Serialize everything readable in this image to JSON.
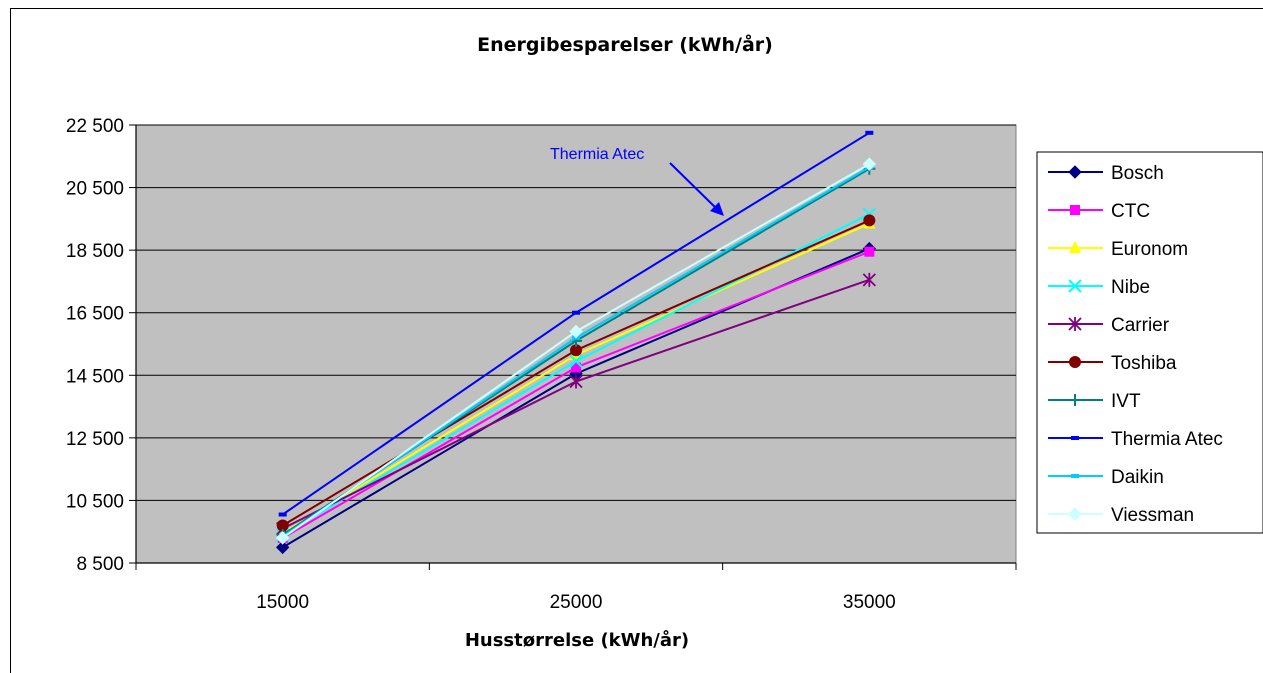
{
  "chart_data": {
    "type": "line",
    "title": "Energibesparelser (kWh/år)",
    "xlabel": "Husstørrelse (kWh/år)",
    "ylabel": "",
    "categories": [
      "15000",
      "25000",
      "35000"
    ],
    "ylim": [
      8500,
      22500
    ],
    "yticks": [
      8500,
      10500,
      12500,
      14500,
      16500,
      18500,
      20500,
      22500
    ],
    "ytick_labels": [
      "8 500",
      "10 500",
      "12 500",
      "14 500",
      "16 500",
      "18 500",
      "20 500",
      "22 500"
    ],
    "grid": "horizontal",
    "legend_position": "right",
    "plot_background": "#c0c0c0",
    "series": [
      {
        "name": "Bosch",
        "values": [
          9000,
          14550,
          18550
        ],
        "color": "#000080",
        "marker": "diamond"
      },
      {
        "name": "CTC",
        "values": [
          9300,
          14750,
          18450
        ],
        "color": "#ff00ff",
        "marker": "square"
      },
      {
        "name": "Euronom",
        "values": [
          9450,
          15150,
          19350
        ],
        "color": "#ffff00",
        "marker": "triangle"
      },
      {
        "name": "Nibe",
        "values": [
          9400,
          14950,
          19650
        ],
        "color": "#00ffff",
        "marker": "x"
      },
      {
        "name": "Carrier",
        "values": [
          9600,
          14300,
          17550
        ],
        "color": "#800080",
        "marker": "star"
      },
      {
        "name": "Toshiba",
        "values": [
          9700,
          15300,
          19450
        ],
        "color": "#800000",
        "marker": "circle"
      },
      {
        "name": "IVT",
        "values": [
          9400,
          15600,
          21100
        ],
        "color": "#008080",
        "marker": "plus"
      },
      {
        "name": "Thermia Atec",
        "values": [
          10050,
          16500,
          22250
        ],
        "color": "#0000ff",
        "marker": "dash"
      },
      {
        "name": "Daikin",
        "values": [
          9350,
          15700,
          21150
        ],
        "color": "#00ccff",
        "marker": "dash"
      },
      {
        "name": "Viessman",
        "values": [
          9300,
          15900,
          21250
        ],
        "color": "#ccffff",
        "marker": "diamond"
      }
    ],
    "annotations": [
      {
        "text": "Thermia Atec",
        "color": "#0000ff",
        "series": "Thermia Atec"
      }
    ]
  }
}
